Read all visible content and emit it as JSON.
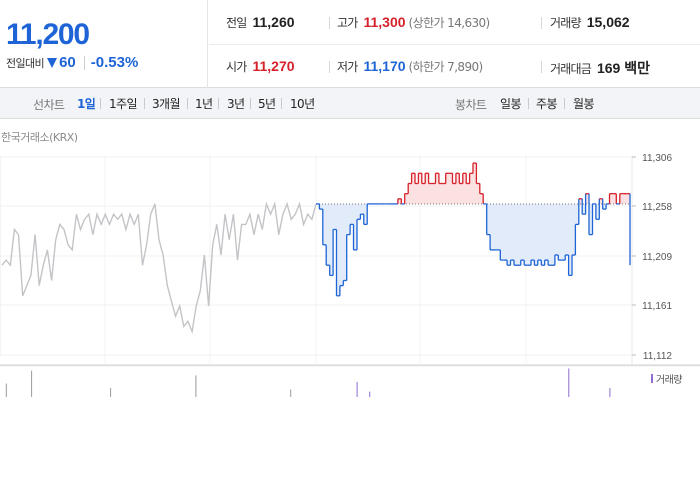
{
  "quote": {
    "price": "11,200",
    "change_label": "전일대비",
    "change_direction": "down",
    "change_abs": "60",
    "change_pct": "-0.53%"
  },
  "stats": {
    "prev_close": {
      "label": "전일",
      "value": "11,260"
    },
    "high": {
      "label": "고가",
      "value": "11,300",
      "note": "(상한가 14,630)"
    },
    "volume": {
      "label": "거래량",
      "value": "15,062"
    },
    "open": {
      "label": "시가",
      "value": "11,270"
    },
    "low": {
      "label": "저가",
      "value": "11,170",
      "note": "(하한가 7,890)"
    },
    "trade_value": {
      "label": "거래대금",
      "value": "169 백만"
    }
  },
  "toolbar": {
    "line_label": "선차트",
    "line_periods": [
      "1일",
      "1주일",
      "3개월",
      "1년",
      "3년",
      "5년",
      "10년"
    ],
    "active_period": "1일",
    "candle_label": "봉차트",
    "candle_periods": [
      "일봉",
      "주봉",
      "월봉"
    ]
  },
  "chart": {
    "source": "한국거래소(KRX)",
    "volume_label": "거래량",
    "colors": {
      "up": "#d6202a",
      "down": "#1e64d6",
      "up_fill": "#fbe1e1",
      "down_fill": "#e1ebf9",
      "history": "#c4c4c8",
      "volume": "#8d6dd0",
      "grid": "#e8e8e8"
    }
  },
  "chart_data": {
    "type": "line",
    "title": "",
    "ylabel": "",
    "y_ticks": [
      11306,
      11258,
      11209,
      11161,
      11112
    ],
    "y_tick_labels": [
      "11,306",
      "11,258",
      "11,209",
      "11,161",
      "11,112"
    ],
    "ylim": [
      11112,
      11306
    ],
    "baseline": 11260,
    "history_series": [
      11200,
      11205,
      11200,
      11235,
      11230,
      11170,
      11180,
      11190,
      11230,
      11180,
      11200,
      11215,
      11185,
      11225,
      11240,
      11235,
      11220,
      11215,
      11250,
      11235,
      11245,
      11250,
      11230,
      11250,
      11240,
      11250,
      11240,
      11250,
      11245,
      11250,
      11235,
      11250,
      11240,
      11250,
      11200,
      11220,
      11250,
      11260,
      11225,
      11210,
      11180,
      11165,
      11150,
      11160,
      11140,
      11145,
      11135,
      11160,
      11175,
      11210,
      11160,
      11220,
      11240,
      11210,
      11250,
      11225,
      11250,
      11205,
      11240,
      11240,
      11250,
      11230,
      11250,
      11235,
      11260,
      11250,
      11260,
      11230,
      11250,
      11260,
      11245,
      11250,
      11260,
      11240,
      11250,
      11245,
      11260
    ],
    "today_series": [
      11260,
      11255,
      11220,
      11200,
      11190,
      11235,
      11170,
      11180,
      11185,
      11230,
      11240,
      11215,
      11245,
      11250,
      11240,
      11260,
      11260,
      11260,
      11260,
      11260,
      11260,
      11260,
      11260,
      11260,
      11265,
      11260,
      11270,
      11280,
      11290,
      11280,
      11290,
      11280,
      11290,
      11280,
      11280,
      11290,
      11280,
      11280,
      11290,
      11290,
      11280,
      11290,
      11280,
      11290,
      11280,
      11290,
      11300,
      11280,
      11270,
      11260,
      11230,
      11215,
      11215,
      11215,
      11205,
      11205,
      11200,
      11205,
      11200,
      11200,
      11205,
      11200,
      11200,
      11205,
      11200,
      11205,
      11200,
      11205,
      11200,
      11200,
      11210,
      11205,
      11205,
      11210,
      11190,
      11210,
      11240,
      11265,
      11250,
      11270,
      11230,
      11260,
      11245,
      11265,
      11255,
      11260,
      11270,
      11270,
      11260,
      11270,
      11270,
      11270,
      11200
    ],
    "volume_spikes": [
      {
        "pos": 0.01,
        "v": 0.45
      },
      {
        "pos": 0.05,
        "v": 0.88
      },
      {
        "pos": 0.175,
        "v": 0.3
      },
      {
        "pos": 0.31,
        "v": 0.72
      },
      {
        "pos": 0.46,
        "v": 0.25
      },
      {
        "pos": 0.565,
        "v": 0.5
      },
      {
        "pos": 0.585,
        "v": 0.18
      },
      {
        "pos": 0.9,
        "v": 0.95
      },
      {
        "pos": 0.965,
        "v": 0.3
      }
    ]
  }
}
